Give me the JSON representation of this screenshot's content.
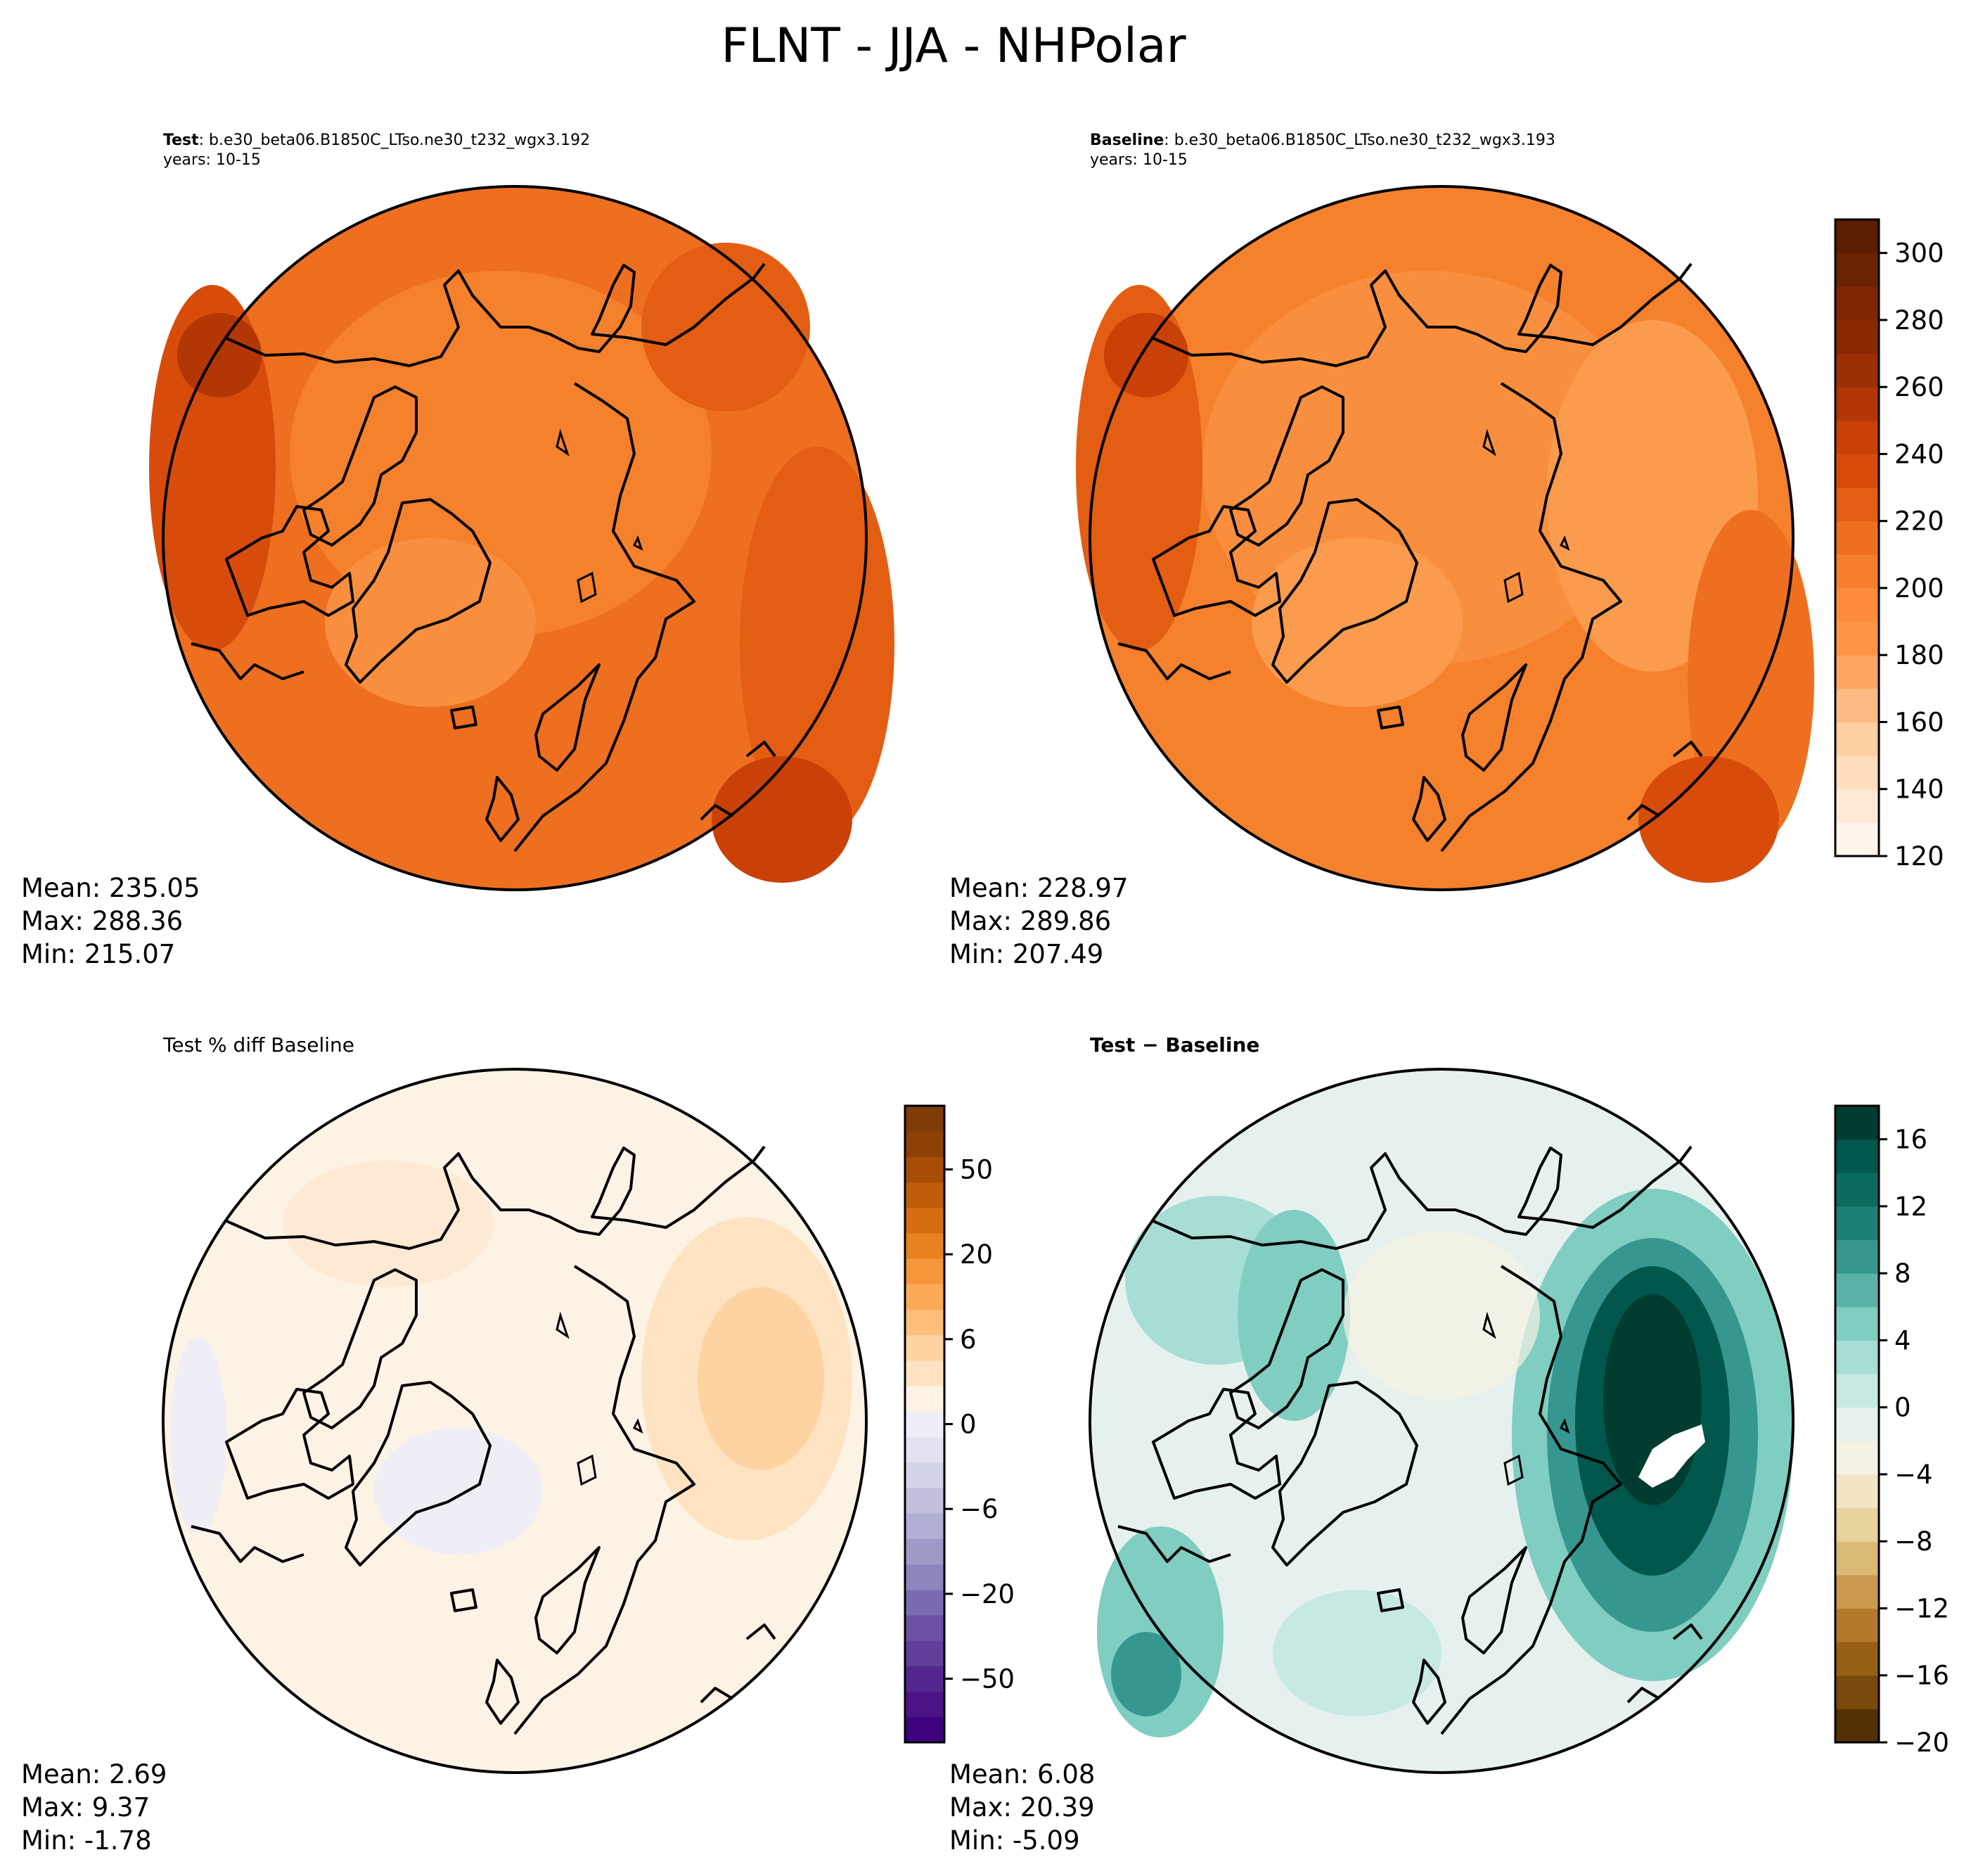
{
  "figure_title": "FLNT - JJA - NHPolar",
  "panels": {
    "test": {
      "label": "Test",
      "case": ": b.e30_beta06.B1850C_LTso.ne30_t232_wgx3.192",
      "years": "years: 10-15",
      "stats": [
        "Mean: 235.05",
        "Max: 288.36",
        "Min: 215.07"
      ]
    },
    "baseline": {
      "label": "Baseline",
      "case": ": b.e30_beta06.B1850C_LTso.ne30_t232_wgx3.193",
      "years": "years: 10-15",
      "stats": [
        "Mean: 228.97",
        "Max: 289.86",
        "Min: 207.49"
      ]
    },
    "pct_diff": {
      "title": "Test % diff Baseline",
      "stats": [
        "Mean:  2.69",
        "Max:  9.37",
        "Min: -1.78"
      ]
    },
    "diff": {
      "title": "Test − Baseline",
      "stats": [
        "Mean:  6.08",
        "Max: 20.39",
        "Min: -5.09"
      ]
    }
  },
  "colorbars": {
    "main": {
      "ticks": [
        "120",
        "140",
        "160",
        "180",
        "200",
        "220",
        "240",
        "260",
        "280",
        "300"
      ],
      "range": [
        120,
        310
      ],
      "colors": [
        "#fff5eb",
        "#fee9d4",
        "#fdddbd",
        "#fdcfa1",
        "#fdbb84",
        "#fda762",
        "#fd9446",
        "#fd8d3c",
        "#f57f2c",
        "#ee6f1f",
        "#e35e12",
        "#d84c0b",
        "#c94107",
        "#b33704",
        "#9c2f04",
        "#8a2904",
        "#7f2704",
        "#6b2303",
        "#5a1d02"
      ]
    },
    "pct": {
      "ticks": [
        "−50",
        "−20",
        "−6",
        "0",
        "6",
        "20",
        "50"
      ],
      "colors": [
        "#3f007d",
        "#4a1486",
        "#54278f",
        "#61409b",
        "#6a51a3",
        "#7b6cb2",
        "#8c85be",
        "#9e9ac8",
        "#b1afd3",
        "#c2c0dc",
        "#d4d4e8",
        "#e3e2ef",
        "#efedf5",
        "#fdf3e4",
        "#fee3c3",
        "#fdd3a1",
        "#fdbf7b",
        "#fbab58",
        "#f5963a",
        "#e8811f",
        "#d66e11",
        "#c05c0a",
        "#a84d07",
        "#8e4106",
        "#7f3b08"
      ]
    },
    "diff": {
      "ticks": [
        "−20",
        "−16",
        "−12",
        "−8",
        "−4",
        "0",
        "4",
        "8",
        "12",
        "16"
      ],
      "range": [
        -20,
        18
      ],
      "colors": [
        "#543005",
        "#7a4a0c",
        "#986015",
        "#b47a2a",
        "#c99a4e",
        "#dbba76",
        "#e8d29d",
        "#f2e5c3",
        "#f5f1e3",
        "#e6f1ef",
        "#c7e9e3",
        "#a6ddd4",
        "#80cdc1",
        "#5ab3a6",
        "#35978f",
        "#1c7f75",
        "#0b6b5f",
        "#01574b",
        "#003c30"
      ]
    }
  },
  "chart_data": [
    {
      "type": "heatmap",
      "panel": "Test",
      "variable": "FLNT",
      "season": "JJA",
      "region": "NHPolar",
      "mean": 235.05,
      "max": 288.36,
      "min": 215.07,
      "colorbar_range": [
        120,
        310
      ]
    },
    {
      "type": "heatmap",
      "panel": "Baseline",
      "variable": "FLNT",
      "season": "JJA",
      "region": "NHPolar",
      "mean": 228.97,
      "max": 289.86,
      "min": 207.49,
      "colorbar_range": [
        120,
        310
      ]
    },
    {
      "type": "heatmap",
      "panel": "Test % diff Baseline",
      "mean": 2.69,
      "max": 9.37,
      "min": -1.78
    },
    {
      "type": "heatmap",
      "panel": "Test − Baseline",
      "mean": 6.08,
      "max": 20.39,
      "min": -5.09,
      "colorbar_range": [
        -20,
        18
      ]
    }
  ]
}
